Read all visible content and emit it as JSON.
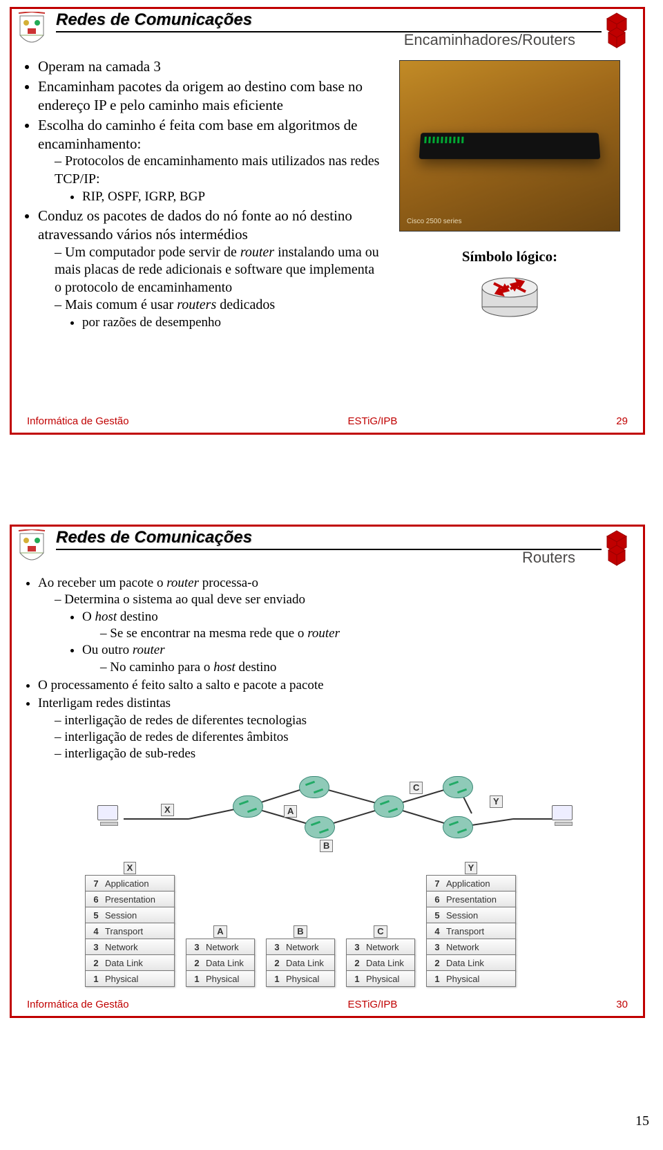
{
  "colors": {
    "border": "#c00000",
    "footer_text": "#c00000",
    "subtitle": "#4b4948",
    "layer_bg_top": "#fdfdfd",
    "layer_bg_bottom": "#e6e6e6",
    "router_fill": "#8fcab8",
    "router_stroke": "#3a8876",
    "photo_grad_a": "#c28b26",
    "photo_grad_b": "#a0691a",
    "photo_grad_c": "#6b4510"
  },
  "page_number": "15",
  "course_title": "Redes de Comunicações",
  "footer": {
    "left": "Informática de Gestão",
    "mid": "ESTiG/IPB"
  },
  "slide29": {
    "subtitle": "Encaminhadores/Routers",
    "footer_page": "29",
    "photo_caption": "Cisco 2500 series",
    "symbol_label": "Símbolo lógico:",
    "bullets": {
      "b1": "Operam na camada 3",
      "b2": "Encaminham pacotes da origem ao destino com base no endereço IP e pelo caminho mais eficiente",
      "b3": "Escolha do caminho é feita com base em algoritmos de encaminhamento:",
      "b3s1": "Protocolos de encaminhamento mais utilizados nas redes TCP/IP:",
      "b3s1a": "RIP, OSPF, IGRP, BGP",
      "b4": "Conduz os pacotes de dados do nó fonte ao nó destino atravessando vários nós intermédios",
      "b4s1_pre": "Um computador pode servir de ",
      "b4s1_it": "router",
      "b4s1_post": " instalando uma ou mais placas de rede adicionais e software que implementa o protocolo de encaminhamento",
      "b4s2_pre": "Mais comum é usar ",
      "b4s2_it": "routers",
      "b4s2_post": " dedicados",
      "b4s2a": "por razões de desempenho"
    }
  },
  "slide30": {
    "subtitle": "Routers",
    "footer_page": "30",
    "bullets": {
      "b1_pre": "Ao receber um pacote o ",
      "b1_it": "router",
      "b1_post": " processa-o",
      "b1s1": "Determina o sistema ao qual deve ser enviado",
      "b1s1a_pre": "O ",
      "b1s1a_it": "host",
      "b1s1a_post": " destino",
      "b1s1a1_pre": "Se se encontrar na mesma rede que o ",
      "b1s1a1_it": "router",
      "b1s1b_pre": "Ou outro ",
      "b1s1b_it": "router",
      "b1s1b1_pre": "No caminho para o ",
      "b1s1b1_it": "host",
      "b1s1b1_post": " destino",
      "b2": "O processamento é feito salto a salto e pacote a pacote",
      "b3": "Interligam redes distintas",
      "b3s1": "interligação de redes de diferentes tecnologias",
      "b3s2": "interligação de redes de diferentes âmbitos",
      "b3s3": "interligação de sub-redes"
    },
    "diagram": {
      "tags": {
        "X": "X",
        "Y": "Y",
        "A": "A",
        "B": "B",
        "C": "C"
      },
      "osi_full": [
        {
          "n": "7",
          "l": "Application"
        },
        {
          "n": "6",
          "l": "Presentation"
        },
        {
          "n": "5",
          "l": "Session"
        },
        {
          "n": "4",
          "l": "Transport"
        },
        {
          "n": "3",
          "l": "Network"
        },
        {
          "n": "2",
          "l": "Data Link"
        },
        {
          "n": "1",
          "l": "Physical"
        }
      ],
      "osi_mini": [
        {
          "n": "3",
          "l": "Network"
        },
        {
          "n": "2",
          "l": "Data Link"
        },
        {
          "n": "1",
          "l": "Physical"
        }
      ]
    }
  }
}
